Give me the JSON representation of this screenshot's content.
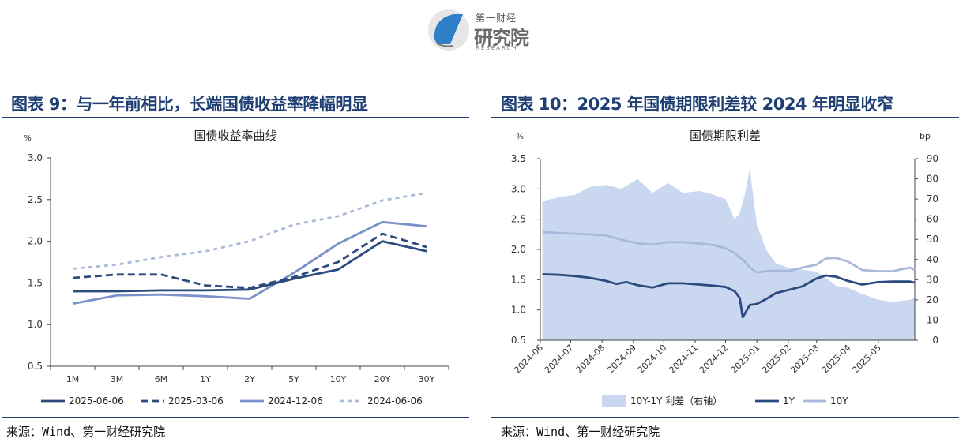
{
  "header": {
    "logo_small": "第一财经",
    "logo_big": "研究院",
    "logo_sub": "RESEARCH"
  },
  "colors": {
    "navy": "#2b4a7d",
    "mid_blue": "#7a90c8",
    "light_blue": "#a9b9db",
    "area_fill": "#c9d7f0",
    "title_blue": "#1f3f73"
  },
  "fig9": {
    "heading": "图表 9：与一年前相比，长端国债收益率降幅明显",
    "source": "来源：Wind、第一财经研究院"
  },
  "fig10": {
    "heading": "图表 10：2025 年国债期限利差较 2024 年明显收窄",
    "source": "来源：Wind、第一财经研究院"
  },
  "chart_data": [
    {
      "type": "line",
      "title": "国债收益率曲线",
      "ylabel": "%",
      "ylim": [
        0.5,
        3.0
      ],
      "yticks": [
        "3.0",
        "2.5",
        "2.0",
        "1.5",
        "1.0",
        "0.5"
      ],
      "categories": [
        "1M",
        "3M",
        "6M",
        "1Y",
        "2Y",
        "5Y",
        "10Y",
        "20Y",
        "30Y"
      ],
      "legend_position": "bottom",
      "series": [
        {
          "name": "2025-06-06",
          "style": "solid",
          "values": [
            1.4,
            1.4,
            1.41,
            1.41,
            1.42,
            1.55,
            1.66,
            2.0,
            1.88
          ]
        },
        {
          "name": "2025-03-06",
          "style": "dashed",
          "values": [
            1.56,
            1.6,
            1.6,
            1.47,
            1.44,
            1.57,
            1.75,
            2.09,
            1.93
          ]
        },
        {
          "name": "2024-12-06",
          "style": "solid",
          "values": [
            1.25,
            1.35,
            1.36,
            1.34,
            1.31,
            1.62,
            1.97,
            2.23,
            2.18
          ]
        },
        {
          "name": "2024-06-06",
          "style": "dotted",
          "values": [
            1.67,
            1.72,
            1.81,
            1.88,
            2.0,
            2.2,
            2.3,
            2.49,
            2.58
          ]
        }
      ]
    },
    {
      "type": "line",
      "title": "国债期限利差",
      "ylabel_left": "%",
      "ylabel_right": "bp",
      "ylim_left": [
        0.5,
        3.5
      ],
      "ylim_right": [
        0,
        90
      ],
      "yticks_left": [
        "3.5",
        "3.0",
        "2.5",
        "2.0",
        "1.5",
        "1.0",
        "0.5"
      ],
      "yticks_right": [
        "90",
        "80",
        "70",
        "60",
        "50",
        "40",
        "30",
        "20",
        "10",
        "0"
      ],
      "x_range": [
        "2024-06",
        "2025-06"
      ],
      "xticks": [
        "2024-06",
        "2024-07",
        "2024-08",
        "2024-09",
        "2024-10",
        "2024-11",
        "2024-12",
        "2025-01",
        "2025-02",
        "2025-03",
        "2025-04",
        "2025-05"
      ],
      "legend_position": "bottom",
      "series": [
        {
          "name": "10Y-1Y 利差（右轴）",
          "style": "area",
          "axis": "right",
          "x": [
            "2024-06-03",
            "2024-06-20",
            "2024-07-05",
            "2024-07-20",
            "2024-08-05",
            "2024-08-20",
            "2024-09-05",
            "2024-09-20",
            "2024-10-05",
            "2024-10-20",
            "2024-11-05",
            "2024-11-20",
            "2024-12-01",
            "2024-12-10",
            "2024-12-15",
            "2024-12-20",
            "2024-12-25",
            "2025-01-01",
            "2025-01-10",
            "2025-01-20",
            "2025-02-01",
            "2025-02-15",
            "2025-03-01",
            "2025-03-10",
            "2025-03-20",
            "2025-04-01",
            "2025-04-15",
            "2025-05-01",
            "2025-05-15",
            "2025-06-01",
            "2025-06-06"
          ],
          "values": [
            69,
            71,
            72,
            76,
            77,
            75,
            80,
            73,
            78,
            73,
            74,
            72,
            70,
            60,
            63,
            72,
            85,
            57,
            45,
            38,
            36,
            35,
            34,
            31,
            27,
            26,
            23,
            20,
            19,
            20,
            21
          ]
        },
        {
          "name": "1Y",
          "style": "solid",
          "axis": "left",
          "x": [
            "2024-06-03",
            "2024-06-20",
            "2024-07-05",
            "2024-07-20",
            "2024-08-05",
            "2024-08-15",
            "2024-08-25",
            "2024-09-05",
            "2024-09-20",
            "2024-10-05",
            "2024-10-20",
            "2024-11-05",
            "2024-11-20",
            "2024-12-01",
            "2024-12-10",
            "2024-12-15",
            "2024-12-18",
            "2024-12-25",
            "2025-01-01",
            "2025-01-10",
            "2025-01-20",
            "2025-02-01",
            "2025-02-15",
            "2025-03-01",
            "2025-03-10",
            "2025-03-20",
            "2025-04-01",
            "2025-04-15",
            "2025-05-01",
            "2025-05-15",
            "2025-06-01",
            "2025-06-06"
          ],
          "values": [
            1.59,
            1.58,
            1.56,
            1.53,
            1.48,
            1.43,
            1.46,
            1.41,
            1.37,
            1.44,
            1.44,
            1.42,
            1.4,
            1.38,
            1.31,
            1.2,
            0.88,
            1.08,
            1.1,
            1.18,
            1.28,
            1.33,
            1.39,
            1.52,
            1.57,
            1.55,
            1.48,
            1.42,
            1.46,
            1.47,
            1.47,
            1.45
          ]
        },
        {
          "name": "10Y",
          "style": "solid",
          "axis": "left",
          "x": [
            "2024-06-03",
            "2024-06-20",
            "2024-07-05",
            "2024-07-20",
            "2024-08-05",
            "2024-08-20",
            "2024-09-05",
            "2024-09-20",
            "2024-10-05",
            "2024-10-20",
            "2024-11-05",
            "2024-11-20",
            "2024-12-01",
            "2024-12-10",
            "2024-12-20",
            "2024-12-25",
            "2025-01-01",
            "2025-01-10",
            "2025-01-20",
            "2025-02-01",
            "2025-02-15",
            "2025-03-01",
            "2025-03-10",
            "2025-03-20",
            "2025-04-01",
            "2025-04-15",
            "2025-05-01",
            "2025-05-15",
            "2025-06-01",
            "2025-06-06"
          ],
          "values": [
            2.29,
            2.27,
            2.26,
            2.25,
            2.23,
            2.16,
            2.1,
            2.08,
            2.12,
            2.12,
            2.1,
            2.07,
            2.02,
            1.94,
            1.8,
            1.7,
            1.62,
            1.64,
            1.65,
            1.64,
            1.7,
            1.75,
            1.85,
            1.86,
            1.8,
            1.66,
            1.64,
            1.64,
            1.7,
            1.66
          ]
        }
      ]
    }
  ]
}
